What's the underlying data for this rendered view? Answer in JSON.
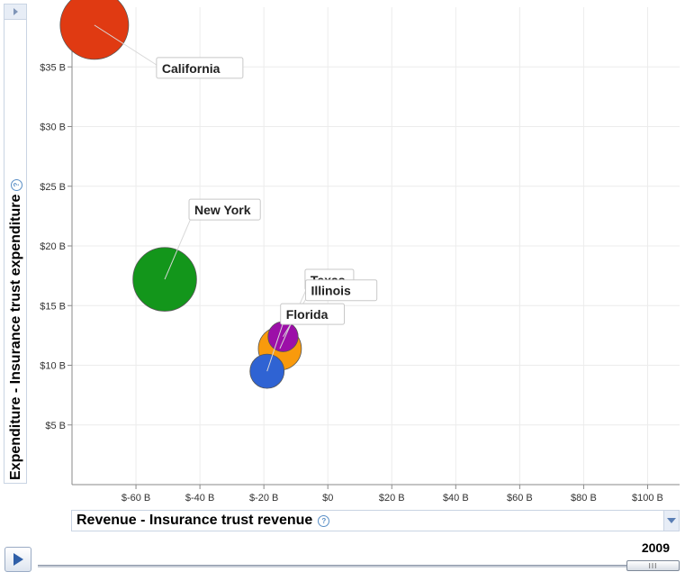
{
  "chart_data": {
    "type": "scatter",
    "subtype": "bubble",
    "xlabel": "Revenue - Insurance trust revenue",
    "ylabel": "Expenditure - Insurance trust expenditure",
    "x_unit": "$B",
    "y_unit": "$B",
    "xlim": [
      -80,
      110
    ],
    "ylim": [
      0,
      40
    ],
    "x_ticks": [
      -60,
      -40,
      -20,
      0,
      20,
      40,
      60,
      80,
      100
    ],
    "x_tick_labels": [
      "$-60 B",
      "$-40 B",
      "$-20 B",
      "$0",
      "$20 B",
      "$40 B",
      "$60 B",
      "$80 B",
      "$100 B"
    ],
    "y_ticks": [
      5,
      10,
      15,
      20,
      25,
      30,
      35
    ],
    "y_tick_labels": [
      "$5 B",
      "$10 B",
      "$15 B",
      "$20 B",
      "$25 B",
      "$30 B",
      "$35 B"
    ],
    "grid": true,
    "points": [
      {
        "name": "California",
        "x": -73,
        "y": 38.5,
        "size": 1.0,
        "color": "#e03a12",
        "label_dx": 75,
        "label_dy": 48
      },
      {
        "name": "New York",
        "x": -51,
        "y": 17.2,
        "size": 0.93,
        "color": "#13961b",
        "label_dx": 33,
        "label_dy": -77
      },
      {
        "name": "Texas",
        "x": -15,
        "y": 11.4,
        "size": 0.63,
        "color": "#f99a0c",
        "label_dx": 34,
        "label_dy": -76
      },
      {
        "name": "Illinois",
        "x": -14,
        "y": 12.4,
        "size": 0.44,
        "color": "#9c0fa8",
        "label_dx": 31,
        "label_dy": -51
      },
      {
        "name": "Florida",
        "x": -19,
        "y": 9.5,
        "size": 0.5,
        "color": "#2f63d3",
        "label_dx": 21,
        "label_dy": -63
      }
    ]
  },
  "timeline": {
    "year": "2009"
  },
  "icons": {
    "help": "?"
  }
}
